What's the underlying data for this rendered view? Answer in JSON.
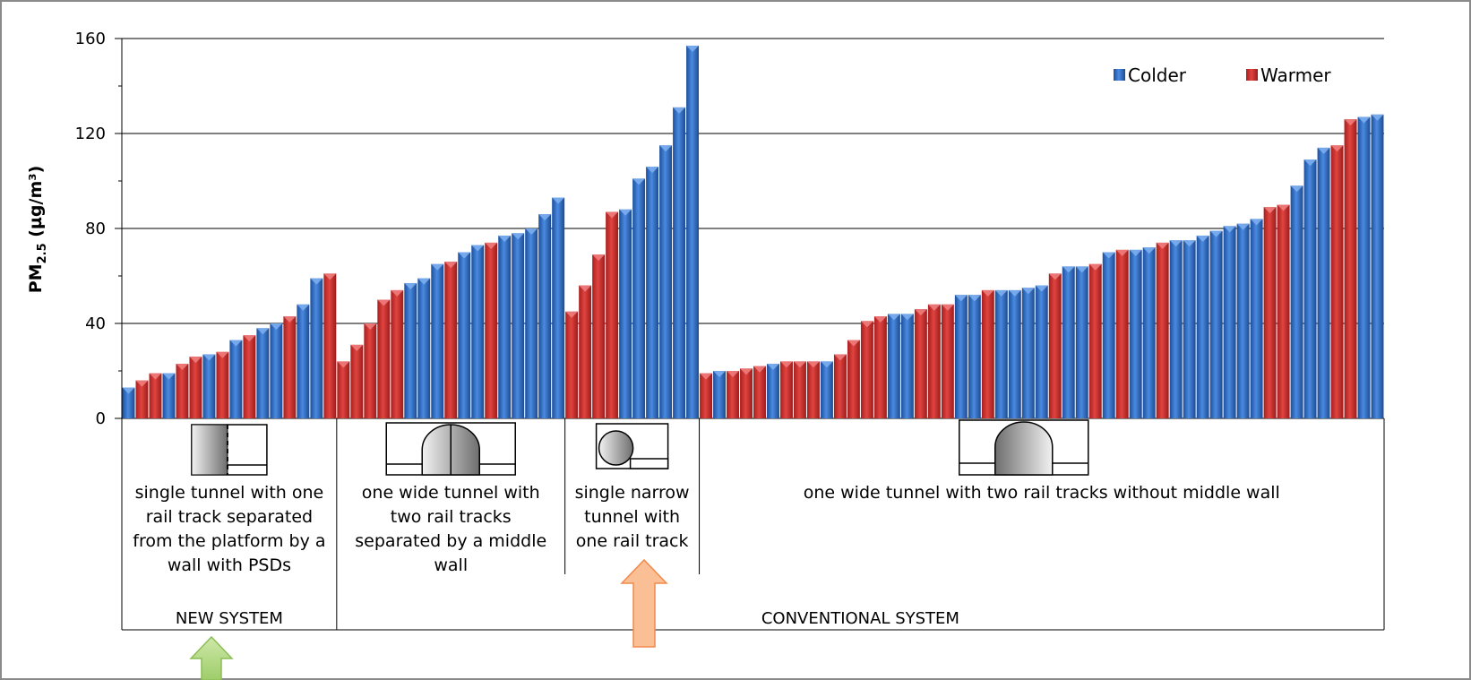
{
  "colors": {
    "Colder": "#2f6ec4",
    "Warmer": "#d3302e",
    "grid": "#000000",
    "arrow_green": "#b7dc8a",
    "arrow_orange": "#fbb98a"
  },
  "chart_data": {
    "type": "bar",
    "ylabel": "PM2.5 (µg/m³)",
    "ylabel_base": "PM",
    "ylabel_sub": "2.5",
    "ylabel_units": " (µg/m³)",
    "ylim": [
      0,
      160
    ],
    "yticks": [
      "0",
      "40",
      "80",
      "120",
      "160"
    ],
    "grid": true,
    "legend": {
      "placement": "top-right",
      "entries": [
        "Colder",
        "Warmer"
      ]
    },
    "groups": [
      {
        "label": [
          "single tunnel with one",
          "rail track separated",
          "from the platform by a",
          "wall with PSDs"
        ],
        "system": "NEW SYSTEM",
        "icon": "psd-tunnel-icon",
        "bars": [
          {
            "v": 13,
            "s": "Colder"
          },
          {
            "v": 16,
            "s": "Warmer"
          },
          {
            "v": 19,
            "s": "Warmer"
          },
          {
            "v": 19,
            "s": "Colder"
          },
          {
            "v": 23,
            "s": "Warmer"
          },
          {
            "v": 26,
            "s": "Warmer"
          },
          {
            "v": 27,
            "s": "Colder"
          },
          {
            "v": 28,
            "s": "Warmer"
          },
          {
            "v": 33,
            "s": "Colder"
          },
          {
            "v": 35,
            "s": "Warmer"
          },
          {
            "v": 38,
            "s": "Colder"
          },
          {
            "v": 40,
            "s": "Colder"
          },
          {
            "v": 43,
            "s": "Warmer"
          },
          {
            "v": 48,
            "s": "Colder"
          },
          {
            "v": 59,
            "s": "Colder"
          },
          {
            "v": 61,
            "s": "Warmer"
          }
        ]
      },
      {
        "label": [
          "one wide tunnel with",
          "two rail tracks",
          "separated by a middle",
          "wall"
        ],
        "system": "CONVENTIONAL SYSTEM",
        "icon": "middle-wall-tunnel-icon",
        "bars": [
          {
            "v": 24,
            "s": "Warmer"
          },
          {
            "v": 31,
            "s": "Warmer"
          },
          {
            "v": 40,
            "s": "Warmer"
          },
          {
            "v": 50,
            "s": "Warmer"
          },
          {
            "v": 54,
            "s": "Warmer"
          },
          {
            "v": 57,
            "s": "Colder"
          },
          {
            "v": 59,
            "s": "Colder"
          },
          {
            "v": 65,
            "s": "Colder"
          },
          {
            "v": 66,
            "s": "Warmer"
          },
          {
            "v": 70,
            "s": "Colder"
          },
          {
            "v": 73,
            "s": "Colder"
          },
          {
            "v": 74,
            "s": "Warmer"
          },
          {
            "v": 77,
            "s": "Colder"
          },
          {
            "v": 78,
            "s": "Colder"
          },
          {
            "v": 80,
            "s": "Colder"
          },
          {
            "v": 86,
            "s": "Colder"
          },
          {
            "v": 93,
            "s": "Colder"
          }
        ]
      },
      {
        "label": [
          "single narrow",
          "tunnel with",
          "one rail track"
        ],
        "system": "CONVENTIONAL SYSTEM",
        "icon": "narrow-tunnel-icon",
        "bars": [
          {
            "v": 45,
            "s": "Warmer"
          },
          {
            "v": 56,
            "s": "Warmer"
          },
          {
            "v": 69,
            "s": "Warmer"
          },
          {
            "v": 87,
            "s": "Warmer"
          },
          {
            "v": 88,
            "s": "Colder"
          },
          {
            "v": 101,
            "s": "Colder"
          },
          {
            "v": 106,
            "s": "Colder"
          },
          {
            "v": 115,
            "s": "Colder"
          },
          {
            "v": 131,
            "s": "Colder"
          },
          {
            "v": 157,
            "s": "Colder"
          }
        ]
      },
      {
        "label": [
          "one wide tunnel with two rail tracks without middle wall"
        ],
        "system": "CONVENTIONAL SYSTEM",
        "icon": "wide-tunnel-icon",
        "bars": [
          {
            "v": 19,
            "s": "Warmer"
          },
          {
            "v": 20,
            "s": "Colder"
          },
          {
            "v": 20,
            "s": "Warmer"
          },
          {
            "v": 21,
            "s": "Warmer"
          },
          {
            "v": 22,
            "s": "Warmer"
          },
          {
            "v": 23,
            "s": "Colder"
          },
          {
            "v": 24,
            "s": "Warmer"
          },
          {
            "v": 24,
            "s": "Warmer"
          },
          {
            "v": 24,
            "s": "Warmer"
          },
          {
            "v": 24,
            "s": "Colder"
          },
          {
            "v": 27,
            "s": "Warmer"
          },
          {
            "v": 33,
            "s": "Warmer"
          },
          {
            "v": 41,
            "s": "Warmer"
          },
          {
            "v": 43,
            "s": "Warmer"
          },
          {
            "v": 44,
            "s": "Colder"
          },
          {
            "v": 44,
            "s": "Colder"
          },
          {
            "v": 46,
            "s": "Warmer"
          },
          {
            "v": 48,
            "s": "Warmer"
          },
          {
            "v": 48,
            "s": "Warmer"
          },
          {
            "v": 52,
            "s": "Colder"
          },
          {
            "v": 52,
            "s": "Colder"
          },
          {
            "v": 54,
            "s": "Warmer"
          },
          {
            "v": 54,
            "s": "Colder"
          },
          {
            "v": 54,
            "s": "Colder"
          },
          {
            "v": 55,
            "s": "Colder"
          },
          {
            "v": 56,
            "s": "Colder"
          },
          {
            "v": 61,
            "s": "Warmer"
          },
          {
            "v": 64,
            "s": "Colder"
          },
          {
            "v": 64,
            "s": "Colder"
          },
          {
            "v": 65,
            "s": "Warmer"
          },
          {
            "v": 70,
            "s": "Colder"
          },
          {
            "v": 71,
            "s": "Warmer"
          },
          {
            "v": 71,
            "s": "Colder"
          },
          {
            "v": 72,
            "s": "Colder"
          },
          {
            "v": 74,
            "s": "Warmer"
          },
          {
            "v": 75,
            "s": "Colder"
          },
          {
            "v": 75,
            "s": "Colder"
          },
          {
            "v": 77,
            "s": "Colder"
          },
          {
            "v": 79,
            "s": "Colder"
          },
          {
            "v": 81,
            "s": "Colder"
          },
          {
            "v": 82,
            "s": "Colder"
          },
          {
            "v": 84,
            "s": "Colder"
          },
          {
            "v": 89,
            "s": "Warmer"
          },
          {
            "v": 90,
            "s": "Warmer"
          },
          {
            "v": 98,
            "s": "Colder"
          },
          {
            "v": 109,
            "s": "Colder"
          },
          {
            "v": 114,
            "s": "Colder"
          },
          {
            "v": 115,
            "s": "Warmer"
          },
          {
            "v": 126,
            "s": "Warmer"
          },
          {
            "v": 127,
            "s": "Colder"
          },
          {
            "v": 128,
            "s": "Colder"
          }
        ]
      }
    ],
    "systems": [
      "NEW SYSTEM",
      "CONVENTIONAL SYSTEM"
    ]
  }
}
